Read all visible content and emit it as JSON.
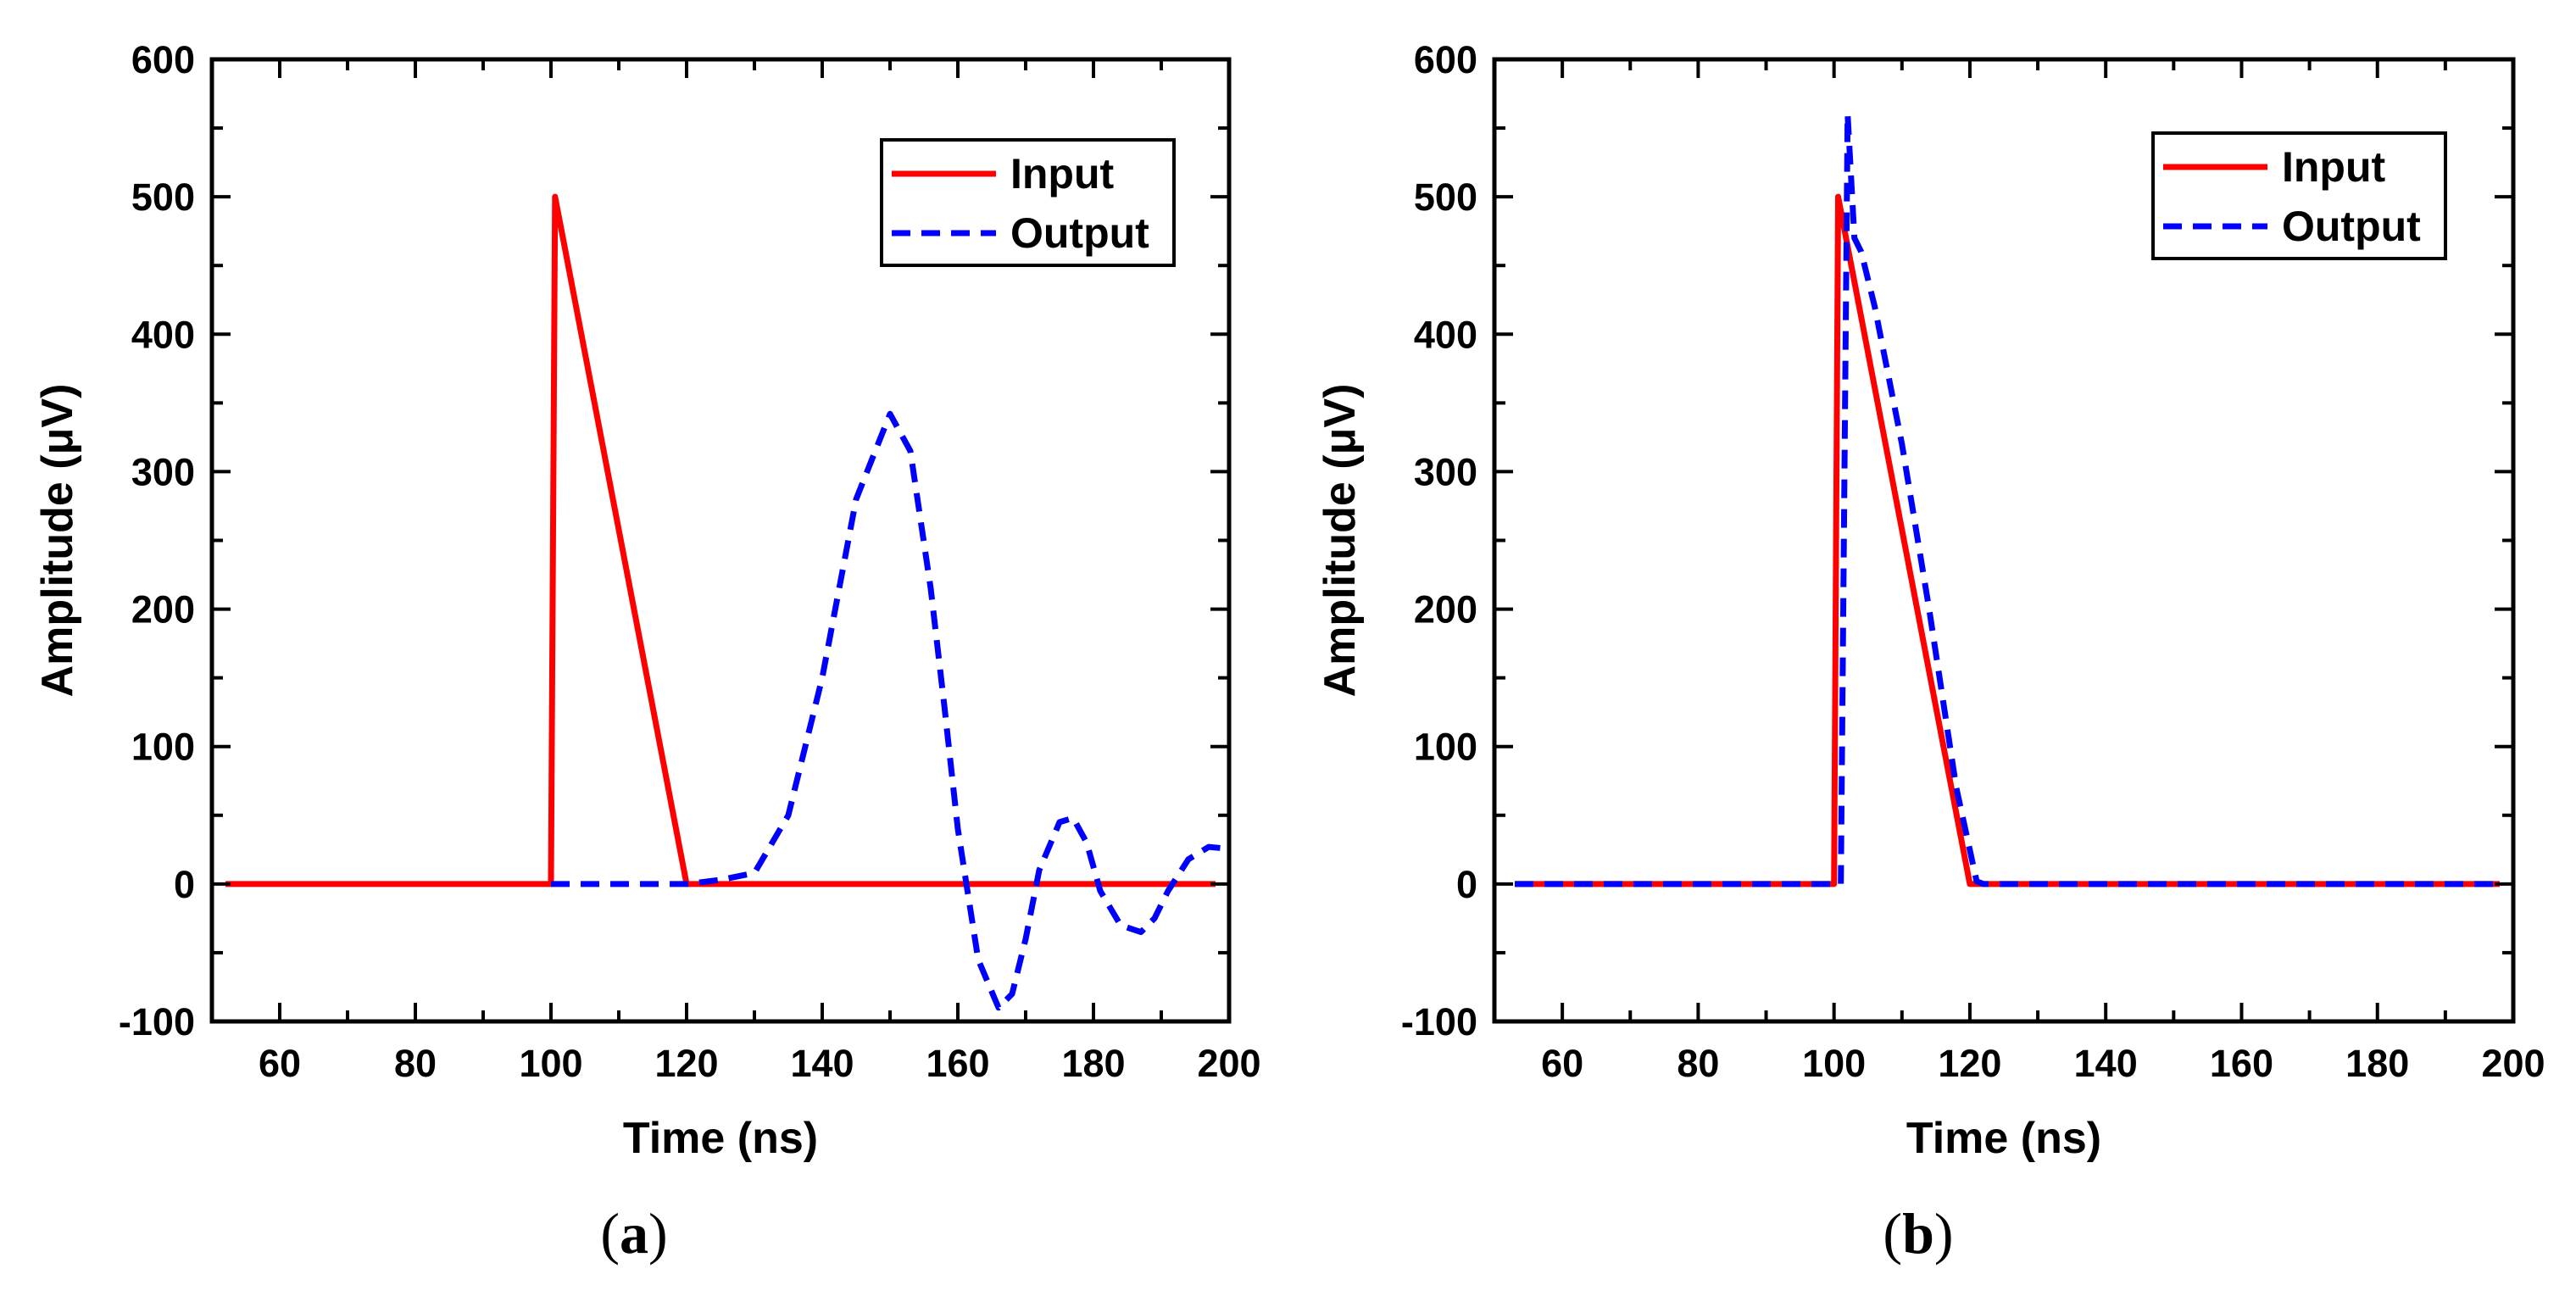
{
  "chart_data": [
    {
      "type": "line",
      "panel": "(a)",
      "panel_letter": "a",
      "xlabel": "Time (ns)",
      "ylabel": "Amplitude (μV)",
      "xlim": [
        50,
        200
      ],
      "ylim": [
        -100,
        600
      ],
      "xticks": [
        60,
        80,
        100,
        120,
        140,
        160,
        180,
        200
      ],
      "yticks": [
        -100,
        0,
        100,
        200,
        300,
        400,
        500,
        600
      ],
      "legend_position": "top-right",
      "series": [
        {
          "name": "Input",
          "color": "#ff0000",
          "style": "solid",
          "x": [
            52,
            100,
            100.6,
            120,
            198
          ],
          "y": [
            0,
            0,
            500,
            0,
            0
          ]
        },
        {
          "name": "Output",
          "color": "#0000ff",
          "style": "dashed",
          "x": [
            100,
            120,
            125,
            130,
            135,
            140,
            145,
            150,
            153,
            156,
            158,
            160,
            163,
            166,
            168,
            170,
            172,
            175,
            177,
            179,
            181,
            184,
            187,
            189,
            191,
            194,
            197,
            199
          ],
          "y": [
            0,
            0,
            3,
            8,
            50,
            150,
            280,
            342,
            315,
            215,
            130,
            40,
            -55,
            -90,
            -80,
            -40,
            10,
            45,
            48,
            30,
            -5,
            -30,
            -35,
            -25,
            -5,
            18,
            27,
            26
          ]
        }
      ]
    },
    {
      "type": "line",
      "panel": "(b)",
      "panel_letter": "b",
      "xlabel": "Time (ns)",
      "ylabel": "Amplitude (μV)",
      "xlim": [
        50,
        200
      ],
      "ylim": [
        -100,
        600
      ],
      "xticks": [
        60,
        80,
        100,
        120,
        140,
        160,
        180,
        200
      ],
      "yticks": [
        -100,
        0,
        100,
        200,
        300,
        400,
        500,
        600
      ],
      "legend_position": "top-right",
      "series": [
        {
          "name": "Input",
          "color": "#ff0000",
          "style": "solid",
          "x": [
            53,
            100,
            100.6,
            120,
            198
          ],
          "y": [
            0,
            0,
            500,
            0,
            0
          ]
        },
        {
          "name": "Output",
          "color": "#0000ff",
          "style": "dashed",
          "x": [
            53,
            101,
            102,
            103,
            104,
            106,
            110,
            114,
            118,
            121,
            122,
            198
          ],
          "y": [
            0,
            0,
            560,
            470,
            460,
            420,
            320,
            200,
            70,
            2,
            0,
            0
          ]
        }
      ]
    }
  ]
}
